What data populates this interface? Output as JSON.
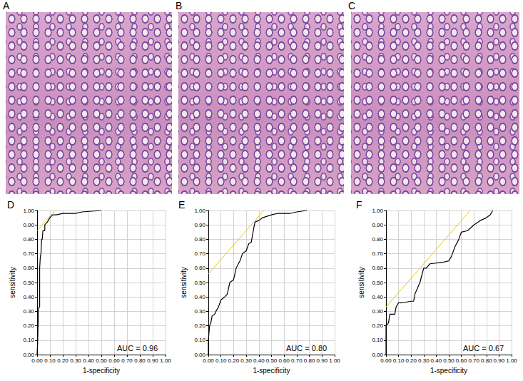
{
  "panels": [
    "A",
    "B",
    "C"
  ],
  "chart_data": [
    {
      "type": "line",
      "title": "D",
      "x_label": "1-specificity",
      "y_label": "sensitivity",
      "annotation": "AUC = 0.96",
      "grid": true,
      "xlim": [
        0,
        1
      ],
      "ylim": [
        0,
        1
      ],
      "xticks": [
        {
          "value": 0,
          "label": "0.00"
        },
        {
          "value": 0.1,
          "label": "0.10"
        },
        {
          "value": 0.2,
          "label": "0.20"
        },
        {
          "value": 0.3,
          "label": "0.30"
        },
        {
          "value": 0.4,
          "label": "0.40"
        },
        {
          "value": 0.5,
          "label": "0.50"
        },
        {
          "value": 0.6,
          "label": "0.60"
        },
        {
          "value": 0.7,
          "label": "0.70"
        },
        {
          "value": 0.8,
          "label": "0.80"
        },
        {
          "value": 0.9,
          "label": "0.90"
        },
        {
          "value": 1,
          "label": "1.00"
        }
      ],
      "yticks": [
        {
          "value": 0,
          "label": "0.00"
        },
        {
          "value": 0.1,
          "label": "0.10"
        },
        {
          "value": 0.2,
          "label": "0.20"
        },
        {
          "value": 0.3,
          "label": "0.30"
        },
        {
          "value": 0.4,
          "label": "0.40"
        },
        {
          "value": 0.5,
          "label": "0.50"
        },
        {
          "value": 0.6,
          "label": "0.60"
        },
        {
          "value": 0.7,
          "label": "0.70"
        },
        {
          "value": 0.8,
          "label": "0.80"
        },
        {
          "value": 0.9,
          "label": "0.90"
        },
        {
          "value": 1,
          "label": "1.00"
        }
      ],
      "series": [
        {
          "color": "#000000",
          "x": [
            0,
            0.005,
            0.01,
            0.015,
            0.02,
            0.02,
            0.025,
            0.03,
            0.035,
            0.04,
            0.045,
            0.06,
            0.06,
            0.08,
            0.1,
            0.12,
            0.15,
            0.2,
            0.3,
            0.35,
            0.5
          ],
          "values": [
            0,
            0.1,
            0.3,
            0.33,
            0.33,
            0.6,
            0.68,
            0.7,
            0.8,
            0.8,
            0.86,
            0.86,
            0.9,
            0.92,
            0.95,
            0.97,
            0.97,
            0.98,
            0.98,
            0.99,
            1.0
          ]
        },
        {
          "color": "#e6c619",
          "x": [
            0,
            0.14
          ],
          "values": [
            0.86,
            1.0
          ]
        }
      ]
    },
    {
      "type": "line",
      "title": "E",
      "x_label": "1-specificity",
      "y_label": "sensitivity",
      "annotation": "AUC = 0.80",
      "grid": true,
      "xlim": [
        0,
        1
      ],
      "ylim": [
        0,
        1
      ],
      "xticks": [
        {
          "value": 0,
          "label": "0.00"
        },
        {
          "value": 0.1,
          "label": "0.10"
        },
        {
          "value": 0.2,
          "label": "0.20"
        },
        {
          "value": 0.3,
          "label": "0.30"
        },
        {
          "value": 0.4,
          "label": "0.40"
        },
        {
          "value": 0.5,
          "label": "0.50"
        },
        {
          "value": 0.6,
          "label": "0.60"
        },
        {
          "value": 0.7,
          "label": "0.70"
        },
        {
          "value": 0.8,
          "label": "0.80"
        },
        {
          "value": 0.9,
          "label": "0.90"
        },
        {
          "value": 1,
          "label": "1.00"
        }
      ],
      "yticks": [
        {
          "value": 0,
          "label": "0.00"
        },
        {
          "value": 0.1,
          "label": "0.10"
        },
        {
          "value": 0.2,
          "label": "0.20"
        },
        {
          "value": 0.3,
          "label": "0.30"
        },
        {
          "value": 0.4,
          "label": "0.40"
        },
        {
          "value": 0.5,
          "label": "0.50"
        },
        {
          "value": 0.6,
          "label": "0.60"
        },
        {
          "value": 0.7,
          "label": "0.70"
        },
        {
          "value": 0.8,
          "label": "0.80"
        },
        {
          "value": 0.9,
          "label": "0.90"
        },
        {
          "value": 1,
          "label": "1.00"
        }
      ],
      "series": [
        {
          "color": "#000000",
          "x": [
            0,
            0,
            0.01,
            0.02,
            0.03,
            0.05,
            0.06,
            0.08,
            0.1,
            0.13,
            0.15,
            0.17,
            0.2,
            0.22,
            0.25,
            0.27,
            0.3,
            0.32,
            0.34,
            0.36,
            0.37,
            0.4,
            0.43,
            0.5,
            0.55,
            0.65,
            0.7,
            0.78
          ],
          "values": [
            0,
            0.1,
            0.2,
            0.22,
            0.27,
            0.28,
            0.3,
            0.33,
            0.38,
            0.4,
            0.42,
            0.5,
            0.52,
            0.6,
            0.65,
            0.7,
            0.72,
            0.77,
            0.78,
            0.88,
            0.92,
            0.93,
            0.95,
            0.97,
            0.98,
            0.98,
            0.99,
            1.0
          ]
        },
        {
          "color": "#e6c619",
          "x": [
            0,
            0.44
          ],
          "values": [
            0.56,
            1.0
          ]
        }
      ]
    },
    {
      "type": "line",
      "title": "F",
      "x_label": "1-specificity",
      "y_label": "sensitivity",
      "annotation": "AUC = 0.67",
      "grid": true,
      "xlim": [
        0,
        1
      ],
      "ylim": [
        0,
        1
      ],
      "xticks": [
        {
          "value": 0,
          "label": "0.00"
        },
        {
          "value": 0.1,
          "label": "0.10"
        },
        {
          "value": 0.2,
          "label": "0.20"
        },
        {
          "value": 0.3,
          "label": "0.30"
        },
        {
          "value": 0.4,
          "label": "0.40"
        },
        {
          "value": 0.5,
          "label": "0.50"
        },
        {
          "value": 0.6,
          "label": "0.60"
        },
        {
          "value": 0.7,
          "label": "0.70"
        },
        {
          "value": 0.8,
          "label": "0.80"
        },
        {
          "value": 0.9,
          "label": "0.90"
        },
        {
          "value": 1,
          "label": "1.00"
        }
      ],
      "yticks": [
        {
          "value": 0,
          "label": "0.00"
        },
        {
          "value": 0.1,
          "label": "0.10"
        },
        {
          "value": 0.2,
          "label": "0.20"
        },
        {
          "value": 0.3,
          "label": "0.30"
        },
        {
          "value": 0.4,
          "label": "0.40"
        },
        {
          "value": 0.5,
          "label": "0.50"
        },
        {
          "value": 0.6,
          "label": "0.60"
        },
        {
          "value": 0.7,
          "label": "0.70"
        },
        {
          "value": 0.8,
          "label": "0.80"
        },
        {
          "value": 0.9,
          "label": "0.90"
        },
        {
          "value": 1,
          "label": "1.00"
        }
      ],
      "series": [
        {
          "color": "#000000",
          "x": [
            0,
            0,
            0.02,
            0.03,
            0.07,
            0.08,
            0.1,
            0.13,
            0.2,
            0.22,
            0.23,
            0.27,
            0.3,
            0.32,
            0.35,
            0.45,
            0.5,
            0.52,
            0.55,
            0.58,
            0.6,
            0.65,
            0.7,
            0.75,
            0.8,
            0.83,
            0.85
          ],
          "values": [
            0,
            0.2,
            0.22,
            0.28,
            0.28,
            0.33,
            0.36,
            0.36,
            0.37,
            0.37,
            0.42,
            0.5,
            0.6,
            0.6,
            0.63,
            0.64,
            0.65,
            0.68,
            0.75,
            0.8,
            0.85,
            0.86,
            0.9,
            0.93,
            0.95,
            0.97,
            1.0
          ]
        },
        {
          "color": "#e6c619",
          "x": [
            0,
            0.67
          ],
          "values": [
            0.33,
            1.0
          ]
        }
      ]
    }
  ]
}
